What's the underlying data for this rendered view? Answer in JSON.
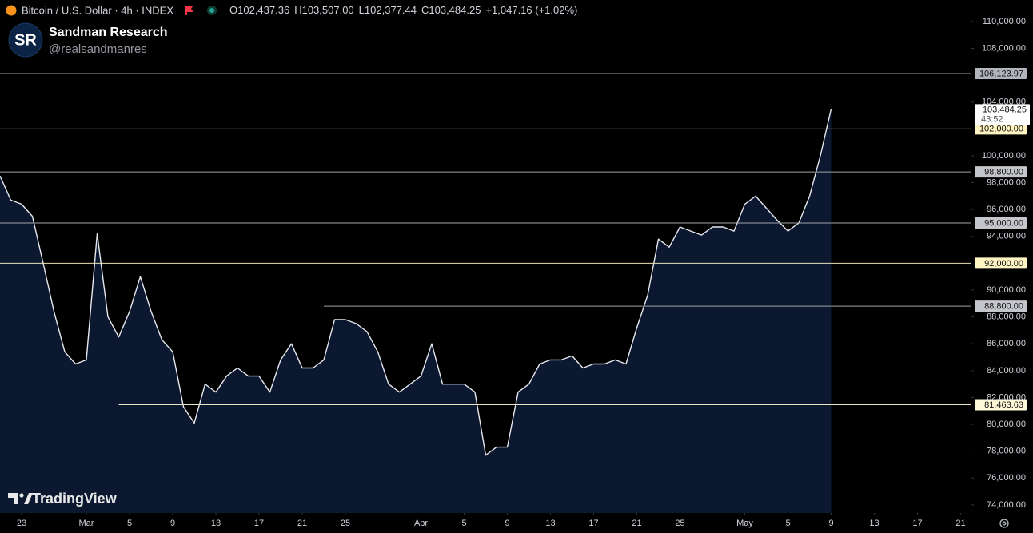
{
  "chart_data": {
    "type": "line",
    "symbol": "Bitcoin / U.S. Dollar · 4h · INDEX",
    "ohlc": [
      {
        "key": "O",
        "value": "102,437.36"
      },
      {
        "key": "H",
        "value": "103,507.00"
      },
      {
        "key": "L",
        "value": "102,377.44"
      },
      {
        "key": "C",
        "value": "103,484.25"
      }
    ],
    "change": "+1,047.16 (+1.02%)",
    "author": "Sandman Research",
    "handle": "@realsandmanres",
    "logo": "SR",
    "watermark": "TradingView",
    "countdown": "43:52",
    "x": [
      "Feb 21",
      "Feb 22",
      "Feb 23",
      "Feb 24",
      "Feb 25",
      "Feb 26",
      "Feb 27",
      "Feb 28",
      "Mar 1",
      "Mar 2",
      "Mar 3",
      "Mar 4",
      "Mar 5",
      "Mar 6",
      "Mar 7",
      "Mar 8",
      "Mar 9",
      "Mar 10",
      "Mar 11",
      "Mar 12",
      "Mar 13",
      "Mar 14",
      "Mar 15",
      "Mar 16",
      "Mar 17",
      "Mar 18",
      "Mar 19",
      "Mar 20",
      "Mar 21",
      "Mar 22",
      "Mar 23",
      "Mar 24",
      "Mar 25",
      "Mar 26",
      "Mar 27",
      "Mar 28",
      "Mar 29",
      "Mar 30",
      "Mar 31",
      "Apr 1",
      "Apr 2",
      "Apr 3",
      "Apr 4",
      "Apr 5",
      "Apr 6",
      "Apr 7",
      "Apr 8",
      "Apr 9",
      "Apr 10",
      "Apr 11",
      "Apr 12",
      "Apr 13",
      "Apr 14",
      "Apr 15",
      "Apr 16",
      "Apr 17",
      "Apr 18",
      "Apr 19",
      "Apr 20",
      "Apr 21",
      "Apr 22",
      "Apr 23",
      "Apr 24",
      "Apr 25",
      "Apr 26",
      "Apr 27",
      "Apr 28",
      "Apr 29",
      "Apr 30",
      "May 1",
      "May 2",
      "May 3",
      "May 4",
      "May 5",
      "May 6",
      "May 7",
      "May 8",
      "May 9"
    ],
    "series": [
      {
        "name": "BTCUSD",
        "color": "#e6e8ee",
        "fill": "#0c1830",
        "values": [
          98500,
          96700,
          96400,
          95500,
          92000,
          88400,
          85400,
          84500,
          84800,
          94200,
          88000,
          86500,
          88400,
          91000,
          88400,
          86300,
          85400,
          81300,
          80100,
          83000,
          82400,
          83600,
          84200,
          83600,
          83600,
          82400,
          84800,
          86000,
          84200,
          84200,
          84800,
          87800,
          87800,
          87500,
          86900,
          85400,
          83000,
          82400,
          83000,
          83600,
          86000,
          83000,
          83000,
          83000,
          82400,
          77700,
          78300,
          78300,
          82400,
          83000,
          84500,
          84800,
          84800,
          85100,
          84200,
          84500,
          84500,
          84800,
          84500,
          87200,
          89600,
          93800,
          93200,
          94700,
          94400,
          94100,
          94700,
          94700,
          94400,
          96400,
          97000,
          96100,
          95200,
          94400,
          95000,
          97000,
          100000,
          103484.25
        ],
        "last_label": "103,484.25"
      }
    ],
    "levels": [
      {
        "value": 106123.97,
        "label": "106,123.97",
        "color": "#9a9ca3",
        "label_bg": "#b2b5be"
      },
      {
        "value": 102000,
        "label": "102,000.00",
        "color": "#e8e2b8",
        "label_bg": "#fff5c2"
      },
      {
        "value": 98800,
        "label": "98,800.00",
        "color": "#a0a2a8",
        "label_bg": "#c4c6cc"
      },
      {
        "value": 95000,
        "label": "95,000.00",
        "color": "#a0a2a8",
        "label_bg": "#c4c6cc"
      },
      {
        "value": 92000,
        "label": "92,000.00",
        "color": "#e8e2b8",
        "label_bg": "#fff5c2"
      },
      {
        "value": 88800,
        "label": "88,800.00",
        "color": "#a0a2a8",
        "label_bg": "#c4c6cc",
        "start": "Mar 23"
      },
      {
        "value": 81463.63,
        "label": "81,463.63",
        "color": "#e8e4c8",
        "label_bg": "#fff8d8",
        "start": "Mar 4"
      }
    ],
    "xlim": [
      "Feb 21",
      "May 22"
    ],
    "xticks": [
      {
        "value": "Feb 23",
        "label": "23"
      },
      {
        "value": "Mar 1",
        "label": "Mar"
      },
      {
        "value": "Mar 5",
        "label": "5"
      },
      {
        "value": "Mar 9",
        "label": "9"
      },
      {
        "value": "Mar 13",
        "label": "13"
      },
      {
        "value": "Mar 17",
        "label": "17"
      },
      {
        "value": "Mar 21",
        "label": "21"
      },
      {
        "value": "Mar 25",
        "label": "25"
      },
      {
        "value": "Apr 1",
        "label": "Apr"
      },
      {
        "value": "Apr 5",
        "label": "5"
      },
      {
        "value": "Apr 9",
        "label": "9"
      },
      {
        "value": "Apr 13",
        "label": "13"
      },
      {
        "value": "Apr 17",
        "label": "17"
      },
      {
        "value": "Apr 21",
        "label": "21"
      },
      {
        "value": "Apr 25",
        "label": "25"
      },
      {
        "value": "May 1",
        "label": "May"
      },
      {
        "value": "May 5",
        "label": "5"
      },
      {
        "value": "May 9",
        "label": "9"
      },
      {
        "value": "May 13",
        "label": "13"
      },
      {
        "value": "May 17",
        "label": "17"
      },
      {
        "value": "May 21",
        "label": "21"
      }
    ],
    "ylim": [
      73400,
      111600
    ],
    "yticks": [
      {
        "value": 110000,
        "label": "110,000.00"
      },
      {
        "value": 108000,
        "label": "108,000.00"
      },
      {
        "value": 104000,
        "label": "104,000.00"
      },
      {
        "value": 100000,
        "label": "100,000.00"
      },
      {
        "value": 98000,
        "label": "98,000.00"
      },
      {
        "value": 96000,
        "label": "96,000.00"
      },
      {
        "value": 94000,
        "label": "94,000.00"
      },
      {
        "value": 90000,
        "label": "90,000.00"
      },
      {
        "value": 88000,
        "label": "88,000.00"
      },
      {
        "value": 86000,
        "label": "86,000.00"
      },
      {
        "value": 84000,
        "label": "84,000.00"
      },
      {
        "value": 82000,
        "label": "82,000.00"
      },
      {
        "value": 80000,
        "label": "80,000.00"
      },
      {
        "value": 78000,
        "label": "78,000.00"
      },
      {
        "value": 76000,
        "label": "76,000.00"
      },
      {
        "value": 74000,
        "label": "74,000.00"
      }
    ],
    "grid": false
  }
}
